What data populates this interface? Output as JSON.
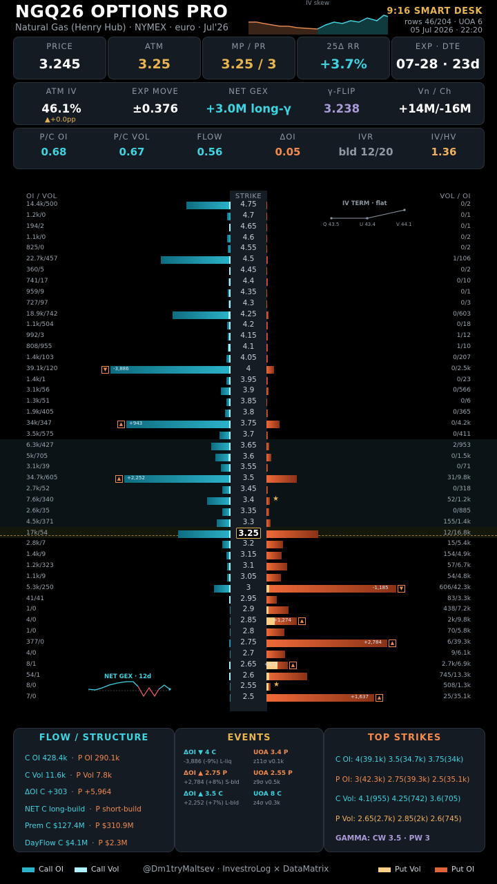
{
  "header": {
    "title": "NGQ26 OPTIONS PRO",
    "subtitle": "Natural Gas (Henry Hub) · NYMEX · euro · Jul'26",
    "skew_label": "IV skew",
    "smart_desk": "9:16 SMART DESK",
    "rows": "rows 46/204 · UOA 6",
    "date": "05 Jul 2026 · 22:20"
  },
  "kpi_row1": [
    {
      "label": "PRICE",
      "value": "3.245",
      "color": "#ffffff"
    },
    {
      "label": "ATM",
      "value": "3.25",
      "color": "#e6b450"
    },
    {
      "label": "MP / PR",
      "value": "3.25 / 3",
      "color": "#e6b450"
    },
    {
      "label": "25Δ RR",
      "value": "+3.7%",
      "color": "#3fd3e0"
    },
    {
      "label": "EXP · DTE",
      "value": "07-28 · 23d",
      "color": "#ffffff"
    }
  ],
  "kpi_row2": [
    {
      "label": "ATM IV",
      "value": "46.1%",
      "color": "#ffffff",
      "sub": "▲+0.0pp"
    },
    {
      "label": "EXP MOVE",
      "value": "±0.376",
      "color": "#ffffff"
    },
    {
      "label": "NET GEX",
      "value": "+3.0M long-γ",
      "color": "#3fd3e0"
    },
    {
      "label": "γ-FLIP",
      "value": "3.238",
      "color": "#a99ad8"
    },
    {
      "label": "Vn / Ch",
      "value": "+14M/-16M",
      "color": "#ffffff"
    }
  ],
  "kpi_row3": [
    {
      "label": "P/C OI",
      "value": "0.68",
      "color": "#3fd3e0"
    },
    {
      "label": "P/C VOL",
      "value": "0.67",
      "color": "#3fd3e0"
    },
    {
      "label": "FLOW",
      "value": "0.56",
      "color": "#3fd3e0"
    },
    {
      "label": "ΔOI",
      "value": "0.05",
      "color": "#f08a50"
    },
    {
      "label": "IVR",
      "value": "bld 12/20",
      "color": "#8f99a4"
    },
    {
      "label": "IV/HV",
      "value": "1.36",
      "color": "#f0b060"
    }
  ],
  "ladder": {
    "left_header": "OI / VOL",
    "strike_header": "STRIKE",
    "right_header": "VOL / OI",
    "atm_strike": "3.25",
    "iv_term": {
      "title": "IV TERM · flat",
      "points": [
        "Q 43.5",
        "U 43.4",
        "V 44.1"
      ]
    },
    "net_gex_label": "NET GEX · 12d",
    "rows": [
      {
        "strike": "4.75",
        "left": "14.4k/500",
        "right": "0/2",
        "c_oi": 14.4,
        "c_vol": 0.5,
        "p_oi": 0.002,
        "p_vol": 0
      },
      {
        "strike": "4.7",
        "left": "1.2k/0",
        "right": "0/1",
        "c_oi": 1.2,
        "c_vol": 0,
        "p_oi": 0.001,
        "p_vol": 0
      },
      {
        "strike": "4.65",
        "left": "194/2",
        "right": "0/1",
        "c_oi": 0.194,
        "c_vol": 0.002,
        "p_oi": 0.001,
        "p_vol": 0
      },
      {
        "strike": "4.6",
        "left": "1.1k/0",
        "right": "0/2",
        "c_oi": 1.1,
        "c_vol": 0,
        "p_oi": 0.002,
        "p_vol": 0
      },
      {
        "strike": "4.55",
        "left": "825/0",
        "right": "0/2",
        "c_oi": 0.825,
        "c_vol": 0,
        "p_oi": 0.002,
        "p_vol": 0
      },
      {
        "strike": "4.5",
        "left": "22.7k/457",
        "right": "1/106",
        "c_oi": 22.7,
        "c_vol": 0.457,
        "p_oi": 0.106,
        "p_vol": 0.001
      },
      {
        "strike": "4.45",
        "left": "360/5",
        "right": "0/2",
        "c_oi": 0.36,
        "c_vol": 0.005,
        "p_oi": 0.002,
        "p_vol": 0
      },
      {
        "strike": "4.4",
        "left": "741/17",
        "right": "0/10",
        "c_oi": 0.741,
        "c_vol": 0.017,
        "p_oi": 0.01,
        "p_vol": 0
      },
      {
        "strike": "4.35",
        "left": "959/9",
        "right": "0/1",
        "c_oi": 0.959,
        "c_vol": 0.009,
        "p_oi": 0.001,
        "p_vol": 0
      },
      {
        "strike": "4.3",
        "left": "727/97",
        "right": "0/3",
        "c_oi": 0.727,
        "c_vol": 0.097,
        "p_oi": 0.003,
        "p_vol": 0
      },
      {
        "strike": "4.25",
        "left": "18.9k/742",
        "right": "0/603",
        "c_oi": 18.9,
        "c_vol": 0.742,
        "p_oi": 0.603,
        "p_vol": 0
      },
      {
        "strike": "4.2",
        "left": "1.1k/504",
        "right": "0/18",
        "c_oi": 1.1,
        "c_vol": 0.504,
        "p_oi": 0.018,
        "p_vol": 0
      },
      {
        "strike": "4.15",
        "left": "992/3",
        "right": "1/12",
        "c_oi": 0.992,
        "c_vol": 0.003,
        "p_oi": 0.012,
        "p_vol": 0.001
      },
      {
        "strike": "4.1",
        "left": "808/955",
        "right": "1/10",
        "c_oi": 0.808,
        "c_vol": 0.955,
        "p_oi": 0.01,
        "p_vol": 0.001
      },
      {
        "strike": "4.05",
        "left": "1.4k/103",
        "right": "0/207",
        "c_oi": 1.4,
        "c_vol": 0.103,
        "p_oi": 0.207,
        "p_vol": 0
      },
      {
        "strike": "4",
        "left": "39.1k/120",
        "right": "0/2.5k",
        "c_oi": 39.1,
        "c_vol": 0.12,
        "p_oi": 2.5,
        "p_vol": 0,
        "flag": "-3,886",
        "mark": "▼",
        "mark_side": "call"
      },
      {
        "strike": "3.95",
        "left": "1.4k/1",
        "right": "0/23",
        "c_oi": 1.4,
        "c_vol": 0.001,
        "p_oi": 0.023,
        "p_vol": 0
      },
      {
        "strike": "3.9",
        "left": "3.1k/56",
        "right": "0/566",
        "c_oi": 3.1,
        "c_vol": 0.056,
        "p_oi": 0.566,
        "p_vol": 0
      },
      {
        "strike": "3.85",
        "left": "1.3k/51",
        "right": "0/6",
        "c_oi": 1.3,
        "c_vol": 0.051,
        "p_oi": 0.006,
        "p_vol": 0
      },
      {
        "strike": "3.8",
        "left": "1.9k/405",
        "right": "0/365",
        "c_oi": 1.9,
        "c_vol": 0.405,
        "p_oi": 0.365,
        "p_vol": 0
      },
      {
        "strike": "3.75",
        "left": "34k/347",
        "right": "0/4.2k",
        "c_oi": 34,
        "c_vol": 0.347,
        "p_oi": 4.2,
        "p_vol": 0,
        "flag": "+943",
        "mark": "▲",
        "mark_side": "call"
      },
      {
        "strike": "3.7",
        "left": "3.5k/575",
        "right": "0/411",
        "c_oi": 3.5,
        "c_vol": 0.575,
        "p_oi": 0.411,
        "p_vol": 0
      },
      {
        "strike": "3.65",
        "left": "6.3k/427",
        "right": "2/953",
        "c_oi": 6.3,
        "c_vol": 0.427,
        "p_oi": 0.953,
        "p_vol": 0.002
      },
      {
        "strike": "3.6",
        "left": "5k/705",
        "right": "0/1.5k",
        "c_oi": 5,
        "c_vol": 0.705,
        "p_oi": 1.5,
        "p_vol": 0
      },
      {
        "strike": "3.55",
        "left": "3.1k/39",
        "right": "0/71",
        "c_oi": 3.1,
        "c_vol": 0.039,
        "p_oi": 0.071,
        "p_vol": 0
      },
      {
        "strike": "3.5",
        "left": "34.7k/605",
        "right": "31/9.8k",
        "c_oi": 34.7,
        "c_vol": 0.605,
        "p_oi": 9.8,
        "p_vol": 0.031,
        "flag": "+2,252",
        "mark": "▲",
        "mark_side": "call"
      },
      {
        "strike": "3.45",
        "left": "2.7k/52",
        "right": "0/318",
        "c_oi": 2.7,
        "c_vol": 0.052,
        "p_oi": 0.318,
        "p_vol": 0
      },
      {
        "strike": "3.4",
        "left": "7.6k/340",
        "right": "52/1.2k",
        "c_oi": 7.6,
        "c_vol": 0.34,
        "p_oi": 1.2,
        "p_vol": 0.052,
        "star": "★"
      },
      {
        "strike": "3.35",
        "left": "2.6k/35",
        "right": "0/885",
        "c_oi": 2.6,
        "c_vol": 0.035,
        "p_oi": 0.885,
        "p_vol": 0
      },
      {
        "strike": "3.3",
        "left": "4.5k/371",
        "right": "155/1.4k",
        "c_oi": 4.5,
        "c_vol": 0.371,
        "p_oi": 1.4,
        "p_vol": 0.155
      },
      {
        "strike": "3.25",
        "left": "17k/54",
        "right": "12/16.8k",
        "c_oi": 17,
        "c_vol": 0.054,
        "p_oi": 16.8,
        "p_vol": 0.012
      },
      {
        "strike": "3.2",
        "left": "2.8k/7",
        "right": "15/5.4k",
        "c_oi": 2.8,
        "c_vol": 0.007,
        "p_oi": 5.4,
        "p_vol": 0.015
      },
      {
        "strike": "3.15",
        "left": "1.4k/9",
        "right": "154/4.9k",
        "c_oi": 1.4,
        "c_vol": 0.009,
        "p_oi": 4.9,
        "p_vol": 0.154
      },
      {
        "strike": "3.1",
        "left": "1.2k/323",
        "right": "57/6.7k",
        "c_oi": 1.2,
        "c_vol": 0.323,
        "p_oi": 6.7,
        "p_vol": 0.057
      },
      {
        "strike": "3.05",
        "left": "1.1k/9",
        "right": "54/4.8k",
        "c_oi": 1.1,
        "c_vol": 0.009,
        "p_oi": 4.8,
        "p_vol": 0.054
      },
      {
        "strike": "3",
        "left": "5.3k/250",
        "right": "606/42.3k",
        "c_oi": 5.3,
        "c_vol": 0.25,
        "p_oi": 42.3,
        "p_vol": 0.606,
        "flag": "-1,185",
        "mark": "▼",
        "mark_side": "put"
      },
      {
        "strike": "2.95",
        "left": "41/41",
        "right": "83/3.3k",
        "c_oi": 0.041,
        "c_vol": 0.041,
        "p_oi": 3.3,
        "p_vol": 0.083
      },
      {
        "strike": "2.9",
        "left": "1/0",
        "right": "438/7.2k",
        "c_oi": 0.001,
        "c_vol": 0,
        "p_oi": 7.2,
        "p_vol": 0.438
      },
      {
        "strike": "2.85",
        "left": "4/0",
        "right": "2k/9.8k",
        "c_oi": 0.004,
        "c_vol": 0,
        "p_oi": 9.8,
        "p_vol": 2,
        "flag": "+1,274",
        "mark": "▲",
        "mark_side": "put"
      },
      {
        "strike": "2.8",
        "left": "1/0",
        "right": "70/5.8k",
        "c_oi": 0.001,
        "c_vol": 0,
        "p_oi": 5.8,
        "p_vol": 0.07
      },
      {
        "strike": "2.75",
        "left": "377/0",
        "right": "6/39.3k",
        "c_oi": 0.377,
        "c_vol": 0,
        "p_oi": 39.3,
        "p_vol": 0.006,
        "flag": "+2,784",
        "mark": "▲",
        "mark_side": "put"
      },
      {
        "strike": "2.7",
        "left": "4/0",
        "right": "9/6.1k",
        "c_oi": 0.004,
        "c_vol": 0,
        "p_oi": 6.1,
        "p_vol": 0.009
      },
      {
        "strike": "2.65",
        "left": "8/1",
        "right": "2.7k/6.9k",
        "c_oi": 0.008,
        "c_vol": 0.001,
        "p_oi": 6.9,
        "p_vol": 2.7,
        "flag": "+672",
        "mark": "▲",
        "mark_side": "put"
      },
      {
        "strike": "2.6",
        "left": "54/1",
        "right": "745/13.3k",
        "c_oi": 0.054,
        "c_vol": 0.001,
        "p_oi": 13.3,
        "p_vol": 0.745
      },
      {
        "strike": "2.55",
        "left": "8/0",
        "right": "508/1.3k",
        "c_oi": 0.008,
        "c_vol": 0,
        "p_oi": 1.3,
        "p_vol": 0.508,
        "star": "★"
      },
      {
        "strike": "2.5",
        "left": "7/0",
        "right": "25/35.1k",
        "c_oi": 0.007,
        "c_vol": 0,
        "p_oi": 35.1,
        "p_vol": 0.025,
        "flag": "+1,637",
        "mark": "▲",
        "mark_side": "put"
      }
    ]
  },
  "flow": {
    "title": "FLOW / STRUCTURE",
    "lines": [
      {
        "a": "C OI 428.4k",
        "sep": "·",
        "b": "P OI 290.1k"
      },
      {
        "a": "C Vol 11.6k",
        "sep": "·",
        "b": "P Vol 7.8k"
      },
      {
        "a": "ΔOI C +303",
        "sep": "·",
        "b": "P +5,964"
      },
      {
        "a": "NET  C long-build",
        "sep": "·",
        "b": "P short-build"
      },
      {
        "a": "Prem  C $127.4M",
        "sep": "·",
        "b": "P $310.9M"
      },
      {
        "a": "DayFlow  C $4.1M",
        "sep": "·",
        "b": "P $2.3M"
      }
    ]
  },
  "events": {
    "title": "EVENTS",
    "left": [
      {
        "head": "ΔOI ▼ 4 C",
        "detail": "-3,886 (-9%)  L-liq",
        "color": "#3fd3e0"
      },
      {
        "head": "ΔOI ▲ 2.75 P",
        "detail": "+2,784 (+8%)  S-bld",
        "color": "#f08a50"
      },
      {
        "head": "ΔOI ▲ 3.5 C",
        "detail": "+2,252 (+7%)  L-bld",
        "color": "#3fd3e0"
      }
    ],
    "right": [
      {
        "head": "UOA 3.4 P",
        "detail": "z11σ v0.1k",
        "color": "#f08a50"
      },
      {
        "head": "UOA 2.55 P",
        "detail": "z9σ v0.5k",
        "color": "#f08a50"
      },
      {
        "head": "UOA 8 C",
        "detail": "z4σ v0.3k",
        "color": "#3fd3e0"
      }
    ]
  },
  "top_strikes": {
    "title": "TOP STRIKES",
    "lines": [
      {
        "text": "C OI: 4(39.1k)  3.5(34.7k)  3.75(34k)",
        "color": "#3fd3e0"
      },
      {
        "text": "P OI: 3(42.3k)  2.75(39.3k)  2.5(35.1k)",
        "color": "#f08a50"
      },
      {
        "text": "C Vol: 4.1(955)  4.25(742)  3.6(705)",
        "color": "#3fd3e0"
      },
      {
        "text": "P Vol: 2.65(2.7k)  2.85(2k)  2.6(745)",
        "color": "#f0b060"
      },
      {
        "text": "GAMMA: CW 3.5 · PW 3",
        "color": "#a99ad8"
      }
    ]
  },
  "legend": {
    "call_oi": "Call OI",
    "call_vol": "Call Vol",
    "credit": "@Dm1tryMaltsev  ·  InvestroLog × DataMatrix",
    "put_vol": "Put Vol",
    "put_oi": "Put OI"
  }
}
